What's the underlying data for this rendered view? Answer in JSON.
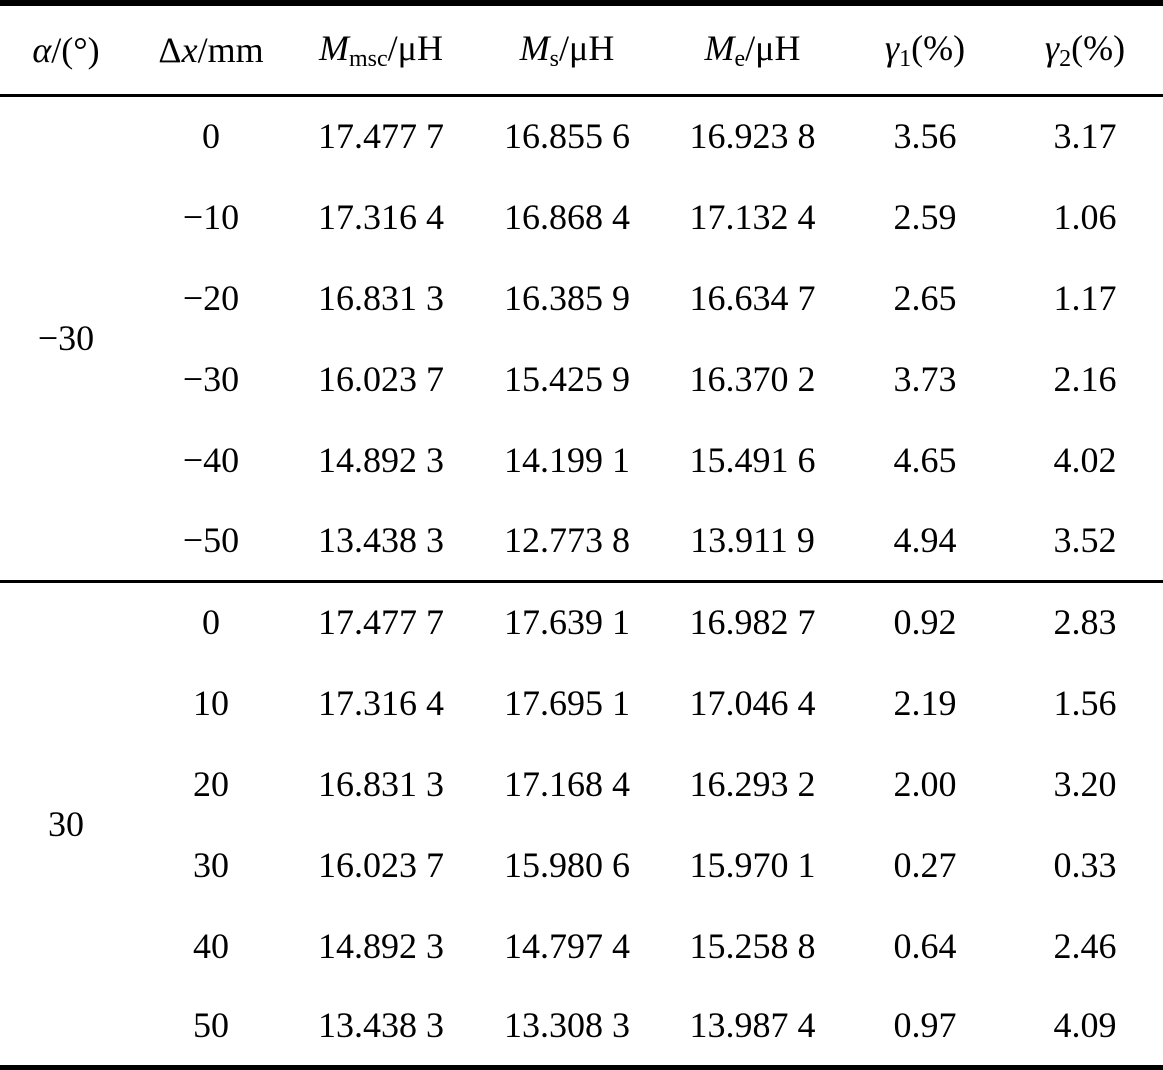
{
  "header": [
    {
      "sym": "α",
      "sub": "",
      "unit": "/(°)"
    },
    {
      "sym": "Δ",
      "sym2": "x",
      "sub": "",
      "unit": "/mm"
    },
    {
      "sym": "M",
      "sub": "msc",
      "unit": "/μH"
    },
    {
      "sym": "M",
      "sub": "s",
      "unit": "/μH"
    },
    {
      "sym": "M",
      "sub": "e",
      "unit": "/μH"
    },
    {
      "sym": "γ",
      "sub": "1",
      "unit": "(%)"
    },
    {
      "sym": "γ",
      "sub": "2",
      "unit": "(%)"
    }
  ],
  "groups": [
    {
      "alpha": "−30",
      "rows": [
        [
          "0",
          "17.477 7",
          "16.855 6",
          "16.923 8",
          "3.56",
          "3.17"
        ],
        [
          "−10",
          "17.316 4",
          "16.868 4",
          "17.132 4",
          "2.59",
          "1.06"
        ],
        [
          "−20",
          "16.831 3",
          "16.385 9",
          "16.634 7",
          "2.65",
          "1.17"
        ],
        [
          "−30",
          "16.023 7",
          "15.425 9",
          "16.370 2",
          "3.73",
          "2.16"
        ],
        [
          "−40",
          "14.892 3",
          "14.199 1",
          "15.491 6",
          "4.65",
          "4.02"
        ],
        [
          "−50",
          "13.438 3",
          "12.773 8",
          "13.911 9",
          "4.94",
          "3.52"
        ]
      ]
    },
    {
      "alpha": "30",
      "rows": [
        [
          "0",
          "17.477 7",
          "17.639 1",
          "16.982 7",
          "0.92",
          "2.83"
        ],
        [
          "10",
          "17.316 4",
          "17.695 1",
          "17.046 4",
          "2.19",
          "1.56"
        ],
        [
          "20",
          "16.831 3",
          "17.168 4",
          "16.293 2",
          "2.00",
          "3.20"
        ],
        [
          "30",
          "16.023 7",
          "15.980 6",
          "15.970 1",
          "0.27",
          "0.33"
        ],
        [
          "40",
          "14.892 3",
          "14.797 4",
          "15.258 8",
          "0.64",
          "2.46"
        ],
        [
          "50",
          "13.438 3",
          "13.308 3",
          "13.987 4",
          "0.97",
          "4.09"
        ]
      ]
    }
  ]
}
